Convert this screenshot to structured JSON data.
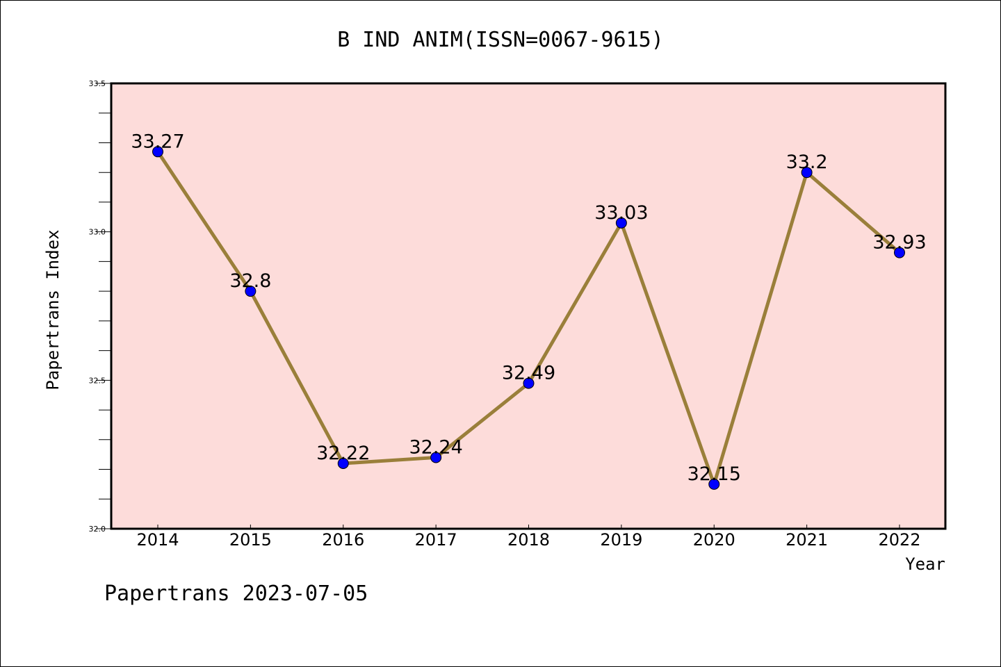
{
  "chart_data": {
    "type": "line",
    "title": "B IND ANIM(ISSN=0067-9615)",
    "xlabel": "Year",
    "ylabel": "Papertrans Index",
    "categories": [
      "2014",
      "2015",
      "2016",
      "2017",
      "2018",
      "2019",
      "2020",
      "2021",
      "2022"
    ],
    "values": [
      33.27,
      32.8,
      32.22,
      32.24,
      32.49,
      33.03,
      32.15,
      33.2,
      32.93
    ],
    "data_labels": [
      "33.27",
      "32.8",
      "32.22",
      "32.24",
      "32.49",
      "33.03",
      "32.15",
      "33.2",
      "32.93"
    ],
    "ylim": [
      32.0,
      33.5
    ],
    "yticks": [
      "32.0",
      "32.5",
      "33.0",
      "33.5"
    ],
    "grid": false,
    "colors": {
      "plot_background": "#fddcda",
      "line": "#9a7f3a",
      "marker": "#0000ff"
    }
  },
  "footer": "Papertrans 2023-07-05"
}
